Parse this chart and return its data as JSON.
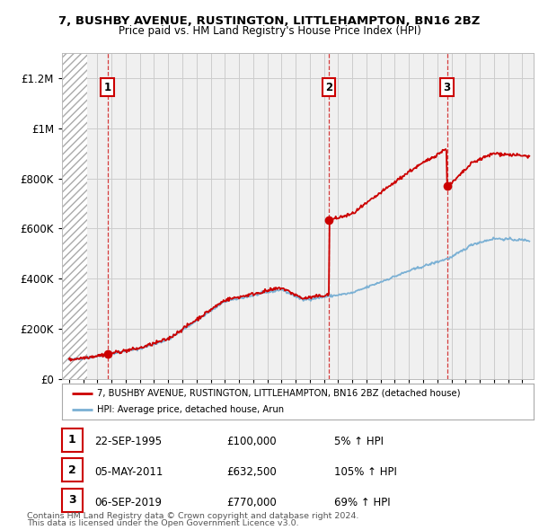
{
  "title": "7, BUSHBY AVENUE, RUSTINGTON, LITTLEHAMPTON, BN16 2BZ",
  "subtitle": "Price paid vs. HM Land Registry's House Price Index (HPI)",
  "ylabel_ticks": [
    0,
    200000,
    400000,
    600000,
    800000,
    1000000,
    1200000
  ],
  "ylabel_labels": [
    "£0",
    "£200K",
    "£400K",
    "£600K",
    "£800K",
    "£1M",
    "£1.2M"
  ],
  "ylim": [
    0,
    1300000
  ],
  "xlim_start": 1992.5,
  "xlim_end": 2025.8,
  "sales": [
    {
      "num": 1,
      "date": "22-SEP-1995",
      "price": 100000,
      "year": 1995.72,
      "hpi_pct": "5%"
    },
    {
      "num": 2,
      "date": "05-MAY-2011",
      "price": 632500,
      "year": 2011.34,
      "hpi_pct": "105%"
    },
    {
      "num": 3,
      "date": "06-SEP-2019",
      "price": 770000,
      "year": 2019.68,
      "hpi_pct": "69%"
    }
  ],
  "legend_line1": "7, BUSHBY AVENUE, RUSTINGTON, LITTLEHAMPTON, BN16 2BZ (detached house)",
  "legend_line2": "HPI: Average price, detached house, Arun",
  "footer1": "Contains HM Land Registry data © Crown copyright and database right 2024.",
  "footer2": "This data is licensed under the Open Government Licence v3.0.",
  "line_color_red": "#cc0000",
  "line_color_blue": "#7ab0d4",
  "grid_color": "#cccccc",
  "bg_color": "#ffffff",
  "plot_bg": "#f0f0f0"
}
